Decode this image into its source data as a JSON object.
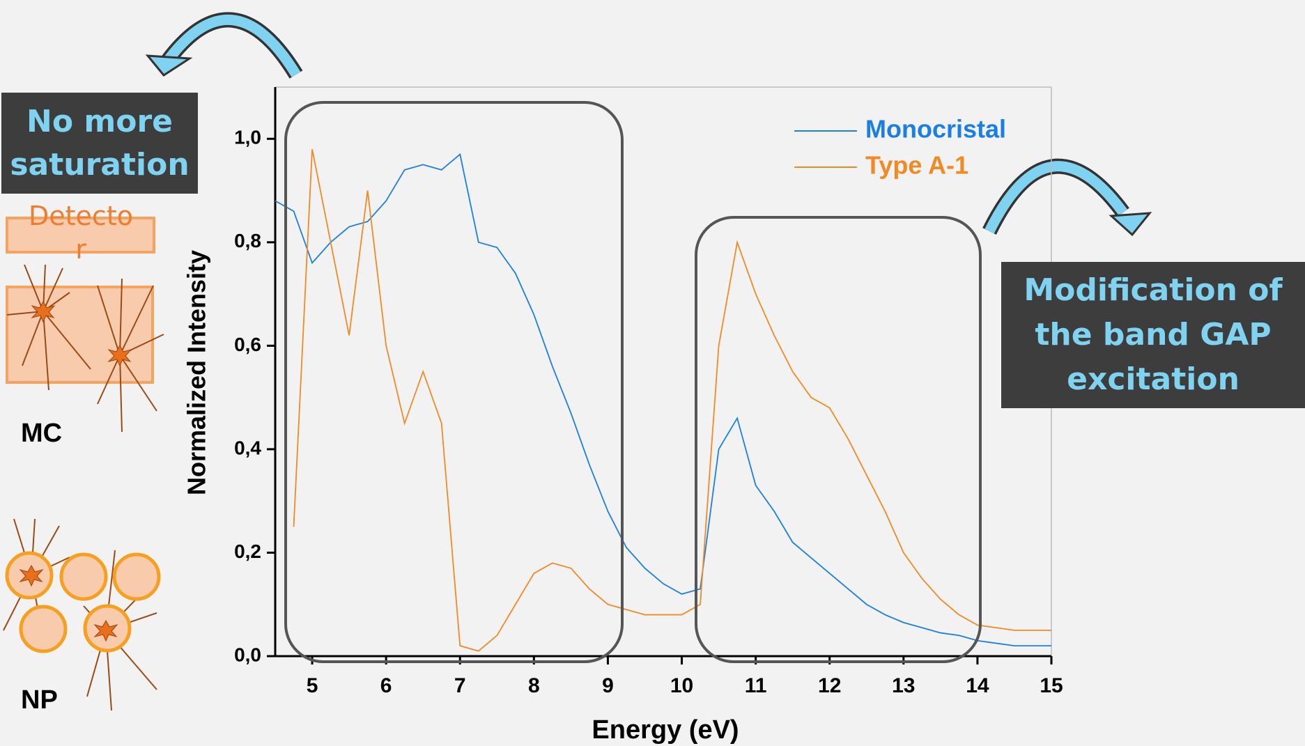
{
  "chart_data": {
    "type": "line",
    "x_label": "Energy (eV)",
    "y_label": "Normalized Intensity",
    "x": [
      4.5,
      4.75,
      5.0,
      5.25,
      5.5,
      5.75,
      6.0,
      6.25,
      6.5,
      6.75,
      7.0,
      7.25,
      7.5,
      7.75,
      8.0,
      8.25,
      8.5,
      8.75,
      9.0,
      9.25,
      9.5,
      9.75,
      10.0,
      10.25,
      10.5,
      10.75,
      11.0,
      11.25,
      11.5,
      11.75,
      12.0,
      12.25,
      12.5,
      12.75,
      13.0,
      13.25,
      13.5,
      13.75,
      14.0,
      14.25,
      14.5,
      14.75,
      15.0
    ],
    "series": [
      {
        "name": "Monocristal",
        "color": "#1a7fe0",
        "values": [
          0.88,
          0.86,
          0.76,
          0.8,
          0.83,
          0.84,
          0.88,
          0.94,
          0.95,
          0.94,
          0.97,
          0.8,
          0.79,
          0.74,
          0.66,
          0.56,
          0.47,
          0.37,
          0.28,
          0.21,
          0.17,
          0.14,
          0.12,
          0.13,
          0.4,
          0.46,
          0.33,
          0.28,
          0.22,
          0.19,
          0.16,
          0.13,
          0.1,
          0.08,
          0.065,
          0.055,
          0.045,
          0.04,
          0.03,
          0.025,
          0.02,
          0.02,
          0.02
        ]
      },
      {
        "name": "Type A-1",
        "color": "#f08a24",
        "values": [
          null,
          0.25,
          0.98,
          0.8,
          0.62,
          0.9,
          0.6,
          0.45,
          0.55,
          0.45,
          0.02,
          0.01,
          0.04,
          0.1,
          0.16,
          0.18,
          0.17,
          0.13,
          0.1,
          0.09,
          0.08,
          0.08,
          0.08,
          0.1,
          0.6,
          0.8,
          0.7,
          0.62,
          0.55,
          0.5,
          0.48,
          0.42,
          0.35,
          0.28,
          0.2,
          0.15,
          0.11,
          0.08,
          0.06,
          0.055,
          0.05,
          0.05,
          0.05
        ]
      }
    ],
    "xlim": [
      4.5,
      15
    ],
    "xticks": [
      5,
      6,
      7,
      8,
      9,
      10,
      11,
      12,
      13,
      14,
      15
    ],
    "ylim": [
      0,
      1.1
    ],
    "yticks": [
      {
        "value": 0,
        "label": "0,0"
      },
      {
        "value": 0.2,
        "label": "0,2"
      },
      {
        "value": 0.4,
        "label": "0,4"
      },
      {
        "value": 0.6,
        "label": "0,6"
      },
      {
        "value": 0.8,
        "label": "0,8"
      },
      {
        "value": 1.0,
        "label": "1,0"
      }
    ],
    "legend": "upper right",
    "annotations": {
      "saturation": "No more saturation",
      "band_gap": "Modification of the band GAP excitation",
      "detector": "Detector",
      "mc": "MC",
      "np": "NP"
    }
  }
}
